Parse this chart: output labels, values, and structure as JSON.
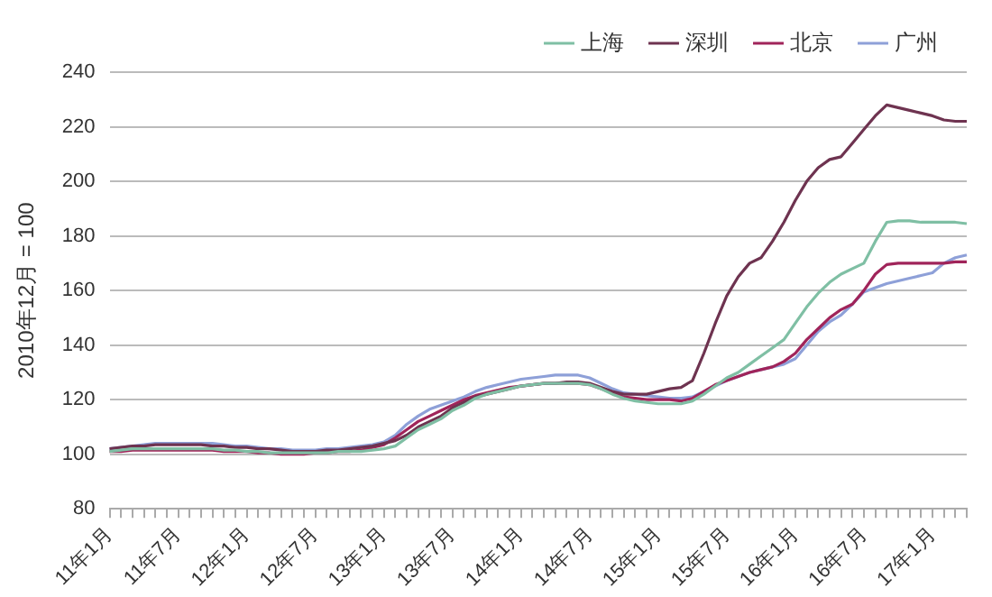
{
  "chart_data": {
    "type": "line",
    "ylabel": "2010年12月 = 100",
    "categories": [
      "11年1月",
      null,
      null,
      null,
      null,
      null,
      "11年7月",
      null,
      null,
      null,
      null,
      null,
      "12年1月",
      null,
      null,
      null,
      null,
      null,
      "12年7月",
      null,
      null,
      null,
      null,
      null,
      "13年1月",
      null,
      null,
      null,
      null,
      null,
      "13年7月",
      null,
      null,
      null,
      null,
      null,
      "14年1月",
      null,
      null,
      null,
      null,
      null,
      "14年7月",
      null,
      null,
      null,
      null,
      null,
      "15年1月",
      null,
      null,
      null,
      null,
      null,
      "15年7月",
      null,
      null,
      null,
      null,
      null,
      "16年1月",
      null,
      null,
      null,
      null,
      null,
      "16年7月",
      null,
      null,
      null,
      null,
      null,
      "17年1月",
      null,
      null,
      null
    ],
    "series": [
      {
        "name": "上海",
        "color": "#7fbfa4",
        "values": [
          101,
          101.5,
          102,
          102,
          102,
          102,
          102,
          102,
          102,
          102,
          101.5,
          101.5,
          101,
          101,
          100.5,
          100.5,
          100.5,
          100.5,
          100.5,
          100.5,
          101,
          101,
          101,
          101.5,
          102,
          103,
          106,
          109,
          111,
          113,
          116,
          118,
          120.5,
          122,
          123,
          124,
          125,
          125.5,
          126,
          126,
          126,
          126,
          125.5,
          124,
          122,
          120.5,
          119.5,
          119,
          118.5,
          118.5,
          118.5,
          119.5,
          122,
          125,
          128,
          130,
          133,
          136,
          139,
          142,
          148,
          154,
          159,
          163,
          166,
          168,
          170,
          178,
          185,
          185.5,
          185.5,
          185,
          185,
          185,
          185,
          184.5
        ]
      },
      {
        "name": "深圳",
        "color": "#6e3350",
        "values": [
          102,
          102.5,
          103,
          103,
          103.5,
          103.5,
          103.5,
          103.5,
          103.5,
          103,
          103,
          102.5,
          102.5,
          102,
          102,
          101.5,
          101,
          101,
          101,
          101.5,
          101.5,
          102,
          102.5,
          103,
          104,
          105,
          107,
          110,
          112,
          114,
          117,
          119,
          121,
          122,
          123,
          124,
          125,
          125.5,
          126,
          126,
          126.5,
          126.5,
          126,
          124.5,
          123,
          122,
          122,
          122,
          123,
          124,
          124.5,
          127,
          137,
          148,
          158,
          165,
          170,
          172,
          178,
          185,
          193,
          200,
          205,
          208,
          209,
          214,
          219,
          224,
          228,
          227,
          226,
          225,
          224,
          222.5,
          222,
          222
        ]
      },
      {
        "name": "北京",
        "color": "#a0245a",
        "values": [
          101,
          101,
          101.5,
          101.5,
          101.5,
          101.5,
          101.5,
          101.5,
          101.5,
          101.5,
          101,
          101,
          101,
          100.5,
          100.5,
          100,
          100,
          100,
          100.5,
          100.5,
          101,
          101,
          101.5,
          102.5,
          103.5,
          106,
          109,
          112,
          114,
          116,
          118,
          120,
          121.5,
          122.5,
          123.5,
          124.5,
          125,
          125.5,
          126,
          126,
          126,
          126,
          125.5,
          124,
          122.5,
          121,
          120.5,
          120,
          120,
          120,
          119.5,
          120.5,
          123,
          125.5,
          127,
          128.5,
          130,
          131,
          132,
          134,
          137,
          142,
          146,
          150,
          153,
          155,
          160,
          166,
          169.5,
          170,
          170,
          170,
          170,
          170,
          170.5,
          170.5
        ]
      },
      {
        "name": "广州",
        "color": "#8ea0d8",
        "values": [
          102,
          102.5,
          103,
          103.5,
          104,
          104,
          104,
          104,
          104,
          104,
          103.5,
          103,
          103,
          102.5,
          102,
          102,
          101.5,
          101.5,
          101.5,
          102,
          102,
          102.5,
          103,
          103.5,
          104.5,
          107,
          111,
          114,
          116.5,
          118,
          119.5,
          121,
          123,
          124.5,
          125.5,
          126.5,
          127.5,
          128,
          128.5,
          129,
          129,
          129,
          128,
          126,
          124,
          122.5,
          122,
          121.5,
          121,
          120.5,
          120.5,
          121,
          123,
          125,
          127,
          128.5,
          130,
          131,
          132,
          133,
          135,
          140,
          145,
          148.5,
          151,
          155,
          159.5,
          161,
          162.5,
          163.5,
          164.5,
          165.5,
          166.5,
          170,
          172,
          173
        ]
      }
    ],
    "ylim": [
      80,
      240
    ],
    "yticks": [
      80,
      100,
      120,
      140,
      160,
      180,
      200,
      220,
      240
    ],
    "grid": "y",
    "legend": "top right",
    "marker": "none",
    "line_style": "solid"
  }
}
